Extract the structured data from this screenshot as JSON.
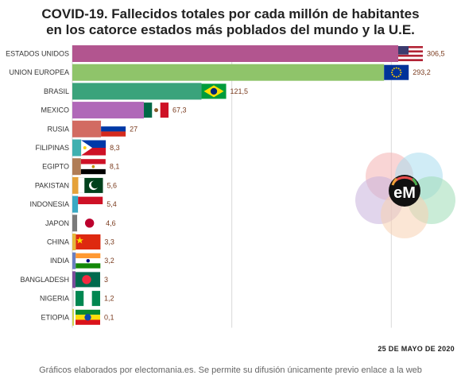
{
  "title_line1": "COVID-19. Fallecidos totales por cada millón de habitantes",
  "title_line2": "en los catorce estados más poblados del mundo y la U.E.",
  "date": "25 DE MAYO DE 2020",
  "footer": "Gráficos elaborados por electomania.es. Se permite su difusión únicamente previo enlace a la web",
  "logo_text": "eM",
  "chart_data": {
    "type": "bar",
    "orientation": "horizontal",
    "categories": [
      "ESTADOS UNIDOS",
      "UNION EUROPEA",
      "BRASIL",
      "MEXICO",
      "RUSIA",
      "FILIPINAS",
      "EGIPTO",
      "PAKISTAN",
      "INDONESIA",
      "JAPON",
      "CHINA",
      "INDIA",
      "BANGLADESH",
      "NIGERIA",
      "ETIOPIA"
    ],
    "values": [
      306.5,
      293.2,
      121.5,
      67.3,
      27,
      8.3,
      8.1,
      5.6,
      5.4,
      4.6,
      3.3,
      3.2,
      3,
      1.2,
      0.1
    ],
    "value_labels": [
      "306,5",
      "293,2",
      "121,5",
      "67,3",
      "27",
      "8,3",
      "8,1",
      "5,6",
      "5,4",
      "4,6",
      "3,3",
      "3,2",
      "3",
      "1,2",
      "0,1"
    ],
    "colors": [
      "#b2558f",
      "#8fc46a",
      "#3aa37b",
      "#b068b8",
      "#d26b62",
      "#3fb0b0",
      "#b07d57",
      "#e5a23a",
      "#39a9c4",
      "#7a7a7a",
      "#e5b83a",
      "#6a7fc0",
      "#7a4c9a",
      "#d8d8d8",
      "#d0d24a"
    ],
    "flags": [
      "usa",
      "eu",
      "brazil",
      "mexico",
      "russia",
      "philippines",
      "egypt",
      "pakistan",
      "indonesia",
      "japan",
      "china",
      "india",
      "bangladesh",
      "nigeria",
      "ethiopia"
    ],
    "xlim": [
      0,
      330
    ],
    "gridlines": [
      150,
      300
    ],
    "grid": true
  }
}
